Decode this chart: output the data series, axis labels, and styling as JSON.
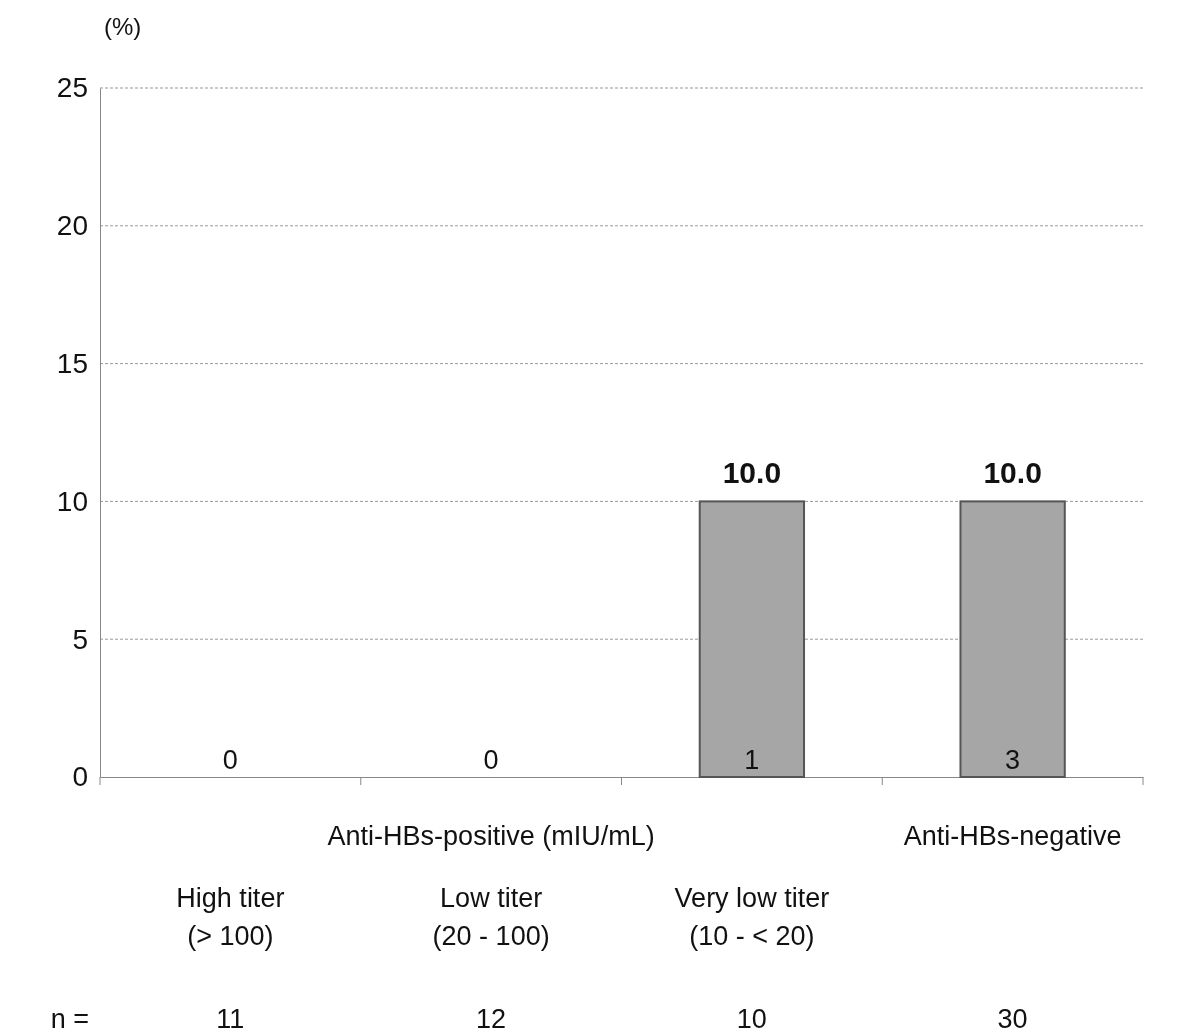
{
  "chart_data": {
    "type": "bar",
    "ylabel": "(%)",
    "categories": [
      "High titer (> 100)",
      "Low titer (20 - 100)",
      "Very low titer (10 - < 20)",
      null
    ],
    "values": [
      0,
      0,
      10.0,
      10.0
    ],
    "color": "#a6a6a6",
    "value_labels": [
      null,
      null,
      "10.0",
      "10.0"
    ],
    "ylim": [
      0,
      25
    ],
    "yticks": [
      0,
      5,
      10,
      15,
      20,
      25
    ],
    "grid": "y",
    "annotations": [
      "0",
      "0",
      "1",
      "3",
      "Anti-HBs-positive (mIU/mL)",
      "Anti-HBs-negative",
      "n =",
      "11",
      "12",
      "10",
      "30"
    ]
  }
}
